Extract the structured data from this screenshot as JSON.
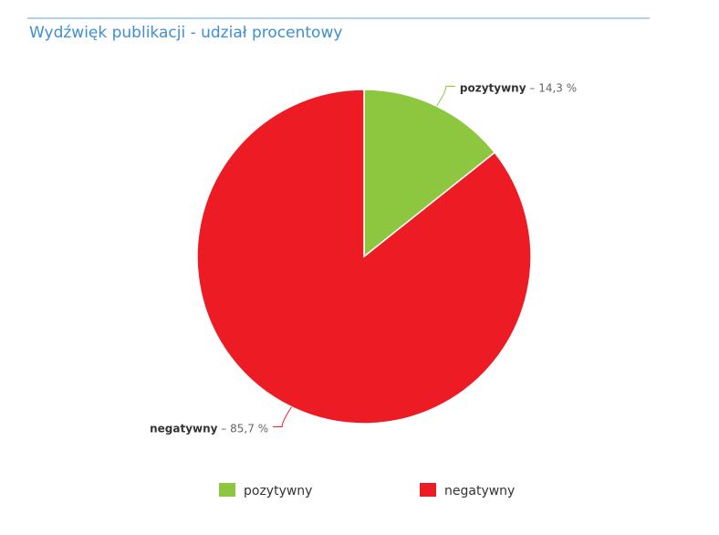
{
  "chart_data": {
    "type": "pie",
    "title": "Wydźwięk publikacji - udział procentowy",
    "categories": [
      "pozytywny",
      "negatywny"
    ],
    "values": [
      14.3,
      85.7
    ],
    "value_labels": [
      "14,3 %",
      "85,7 %"
    ],
    "label_separator": "–",
    "colors": [
      "#8dc63f",
      "#ed1c24"
    ],
    "legend": "bottom"
  }
}
